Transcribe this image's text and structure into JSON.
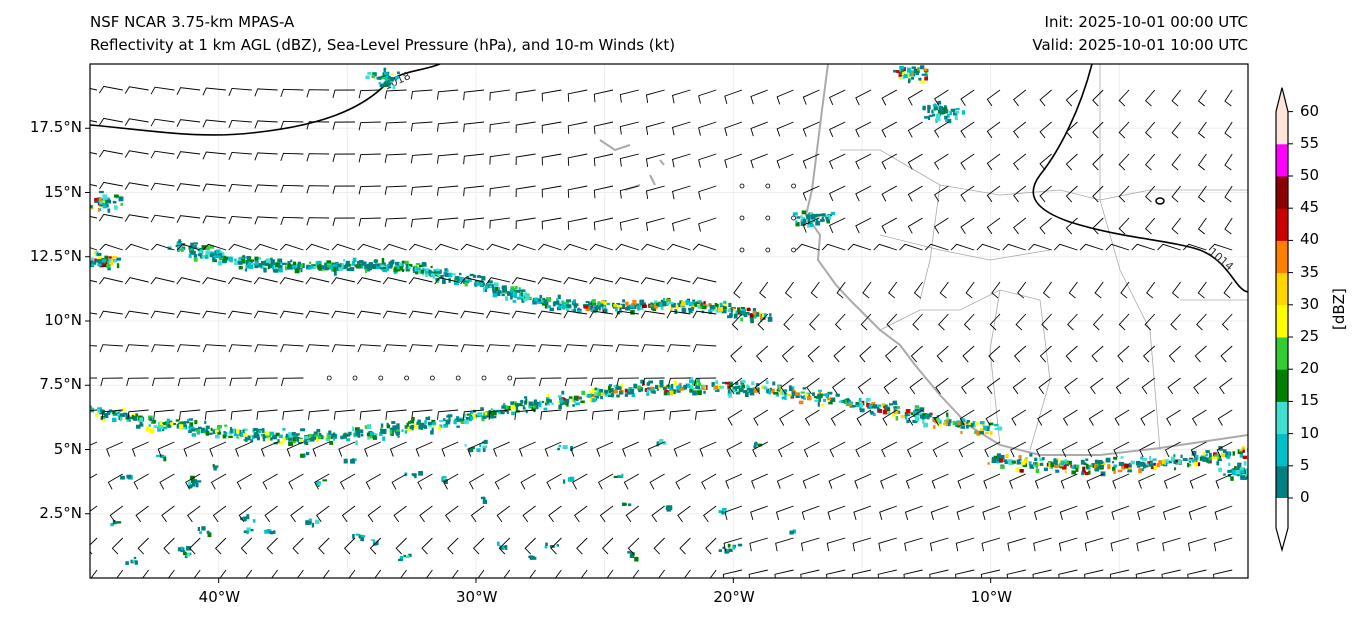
{
  "title": {
    "line1": "NSF NCAR 3.75-km MPAS-A",
    "line2": "Reflectivity at 1 km AGL (dBZ), Sea-Level Pressure (hPa), and 10-m Winds (kt)",
    "init": "Init: 2025-10-01 00:00 UTC",
    "valid": "Valid: 2025-10-01 10:00 UTC"
  },
  "map": {
    "lon_range": [
      -45,
      0
    ],
    "lat_range": [
      0,
      20
    ],
    "lon_ticks": [
      {
        "v": -40,
        "label": "40°W"
      },
      {
        "v": -30,
        "label": "30°W"
      },
      {
        "v": -20,
        "label": "20°W"
      },
      {
        "v": -10,
        "label": "10°W"
      }
    ],
    "lat_ticks": [
      {
        "v": 17.5,
        "label": "17.5°N"
      },
      {
        "v": 15,
        "label": "15°N"
      },
      {
        "v": 12.5,
        "label": "12.5°N"
      },
      {
        "v": 10,
        "label": "10°N"
      },
      {
        "v": 7.5,
        "label": "7.5°N"
      },
      {
        "v": 5,
        "label": "5°N"
      },
      {
        "v": 2.5,
        "label": "2.5°N"
      }
    ],
    "isobar_labels": [
      "1018",
      "1014"
    ]
  },
  "colorbar": {
    "label": "[dBZ]",
    "ticks": [
      "0",
      "5",
      "10",
      "15",
      "20",
      "25",
      "30",
      "35",
      "40",
      "45",
      "50",
      "55",
      "60"
    ],
    "colors": [
      "#008080",
      "#00c0c8",
      "#40e0d0",
      "#008000",
      "#32cd32",
      "#ffff00",
      "#ffd700",
      "#ff8000",
      "#cc0000",
      "#8b0000",
      "#ff00ff",
      "#ffe4d8"
    ]
  }
}
